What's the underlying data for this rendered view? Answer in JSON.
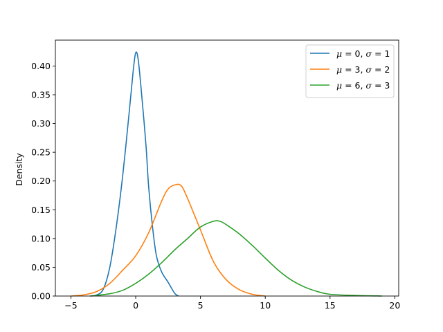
{
  "chart_data": {
    "type": "line",
    "xlabel": "",
    "ylabel": "Density",
    "xlim": [
      -6.2,
      20.3
    ],
    "ylim": [
      0.0,
      0.445
    ],
    "x_ticks": [
      -5,
      0,
      5,
      10,
      15,
      20
    ],
    "x_tick_labels": [
      "−5",
      "0",
      "5",
      "10",
      "15",
      "20"
    ],
    "y_ticks": [
      0.0,
      0.05,
      0.1,
      0.15,
      0.2,
      0.25,
      0.3,
      0.35,
      0.4
    ],
    "y_tick_labels": [
      "0.00",
      "0.05",
      "0.10",
      "0.15",
      "0.20",
      "0.25",
      "0.30",
      "0.35",
      "0.40"
    ],
    "grid": false,
    "legend_position": "top-right",
    "series": [
      {
        "name": "μ = 0, σ = 1",
        "legend": {
          "mu": "0",
          "sigma": "1"
        },
        "color": "#1f77b4",
        "x": [
          -3.5,
          -3.0,
          -2.5,
          -2.0,
          -1.5,
          -1.0,
          -0.5,
          -0.2,
          0.0,
          0.2,
          0.5,
          0.8,
          1.0,
          1.3,
          1.6,
          2.0,
          2.5,
          3.0,
          3.3
        ],
        "y": [
          0.0,
          0.002,
          0.012,
          0.05,
          0.12,
          0.21,
          0.32,
          0.39,
          0.423,
          0.41,
          0.34,
          0.26,
          0.19,
          0.12,
          0.07,
          0.042,
          0.024,
          0.005,
          0.0
        ]
      },
      {
        "name": "μ = 3, σ = 2",
        "legend": {
          "mu": "3",
          "sigma": "2"
        },
        "color": "#ff7f0e",
        "x": [
          -5.0,
          -4.0,
          -3.0,
          -2.0,
          -1.0,
          0.0,
          1.0,
          2.0,
          2.5,
          3.0,
          3.5,
          4.0,
          5.0,
          6.0,
          7.0,
          8.0,
          9.0,
          10.0
        ],
        "y": [
          0.0,
          0.002,
          0.008,
          0.022,
          0.045,
          0.07,
          0.11,
          0.165,
          0.186,
          0.193,
          0.192,
          0.17,
          0.115,
          0.06,
          0.028,
          0.011,
          0.003,
          0.0
        ]
      },
      {
        "name": "μ = 6, σ = 3",
        "legend": {
          "mu": "6",
          "sigma": "3"
        },
        "color": "#2ca02c",
        "x": [
          -3.5,
          -2.0,
          -1.0,
          0.0,
          1.0,
          2.0,
          3.0,
          4.0,
          5.0,
          6.0,
          6.5,
          7.0,
          8.0,
          9.0,
          10.0,
          11.0,
          12.0,
          13.0,
          14.0,
          15.0,
          17.0,
          19.0
        ],
        "y": [
          0.0,
          0.004,
          0.01,
          0.022,
          0.038,
          0.058,
          0.08,
          0.1,
          0.12,
          0.13,
          0.13,
          0.124,
          0.108,
          0.088,
          0.066,
          0.045,
          0.028,
          0.016,
          0.008,
          0.003,
          0.001,
          0.0
        ]
      }
    ]
  }
}
